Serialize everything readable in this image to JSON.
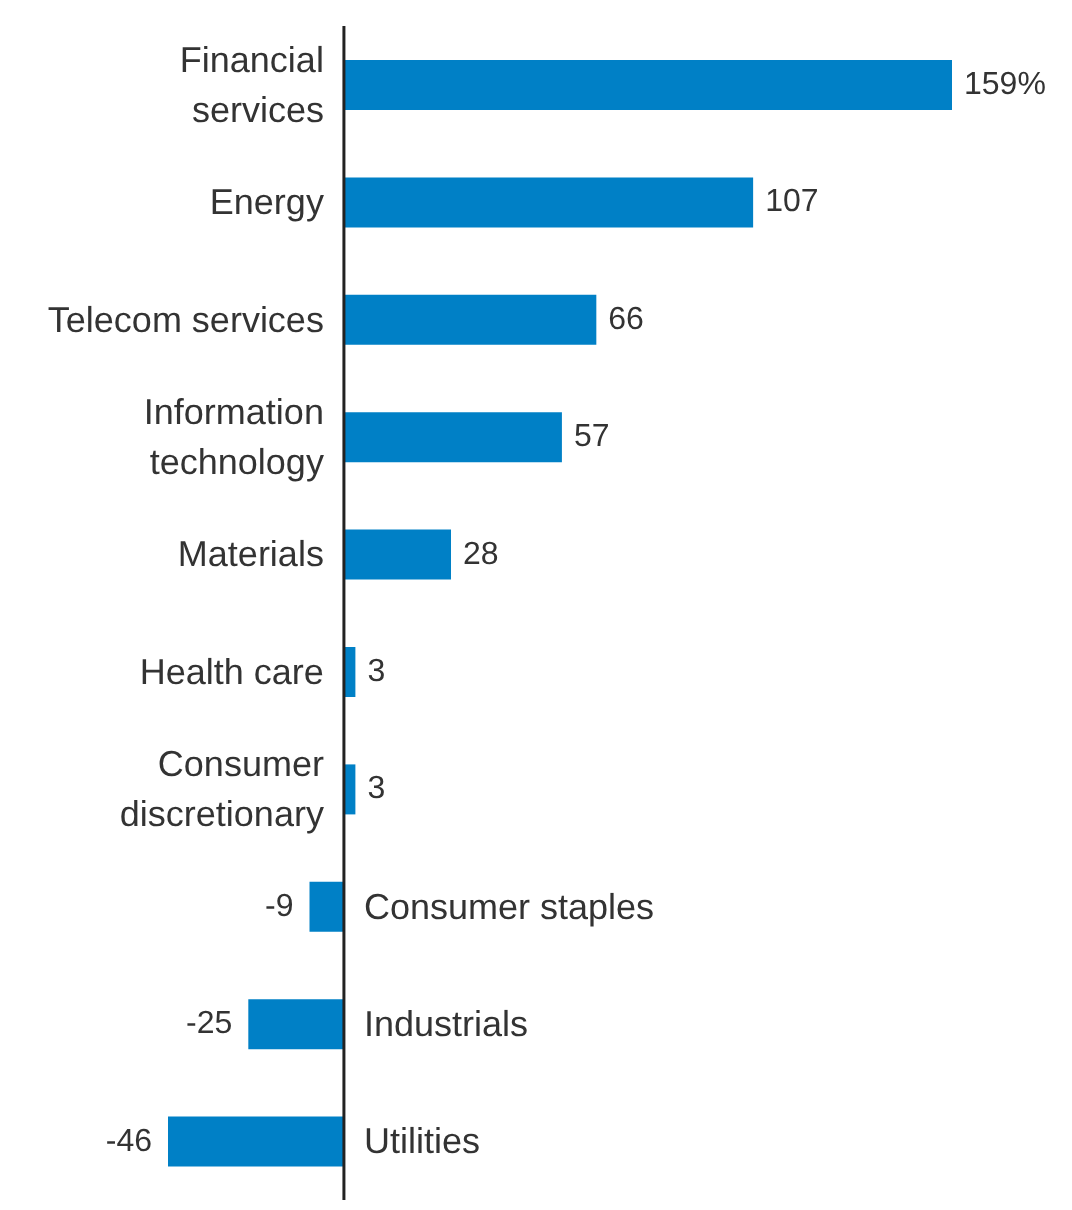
{
  "chart_data": {
    "type": "bar",
    "orientation": "horizontal",
    "categories": [
      "Financial services",
      "Energy",
      "Telecom services",
      "Information technology",
      "Materials",
      "Health care",
      "Consumer discretionary",
      "Consumer staples",
      "Industrials",
      "Utilities"
    ],
    "values": [
      159,
      107,
      66,
      57,
      28,
      3,
      3,
      -9,
      -25,
      -46
    ],
    "value_labels": [
      "159%",
      "107",
      "66",
      "57",
      "28",
      "3",
      "3",
      "-9",
      "-25",
      "-46"
    ],
    "color": "#0080c6"
  }
}
